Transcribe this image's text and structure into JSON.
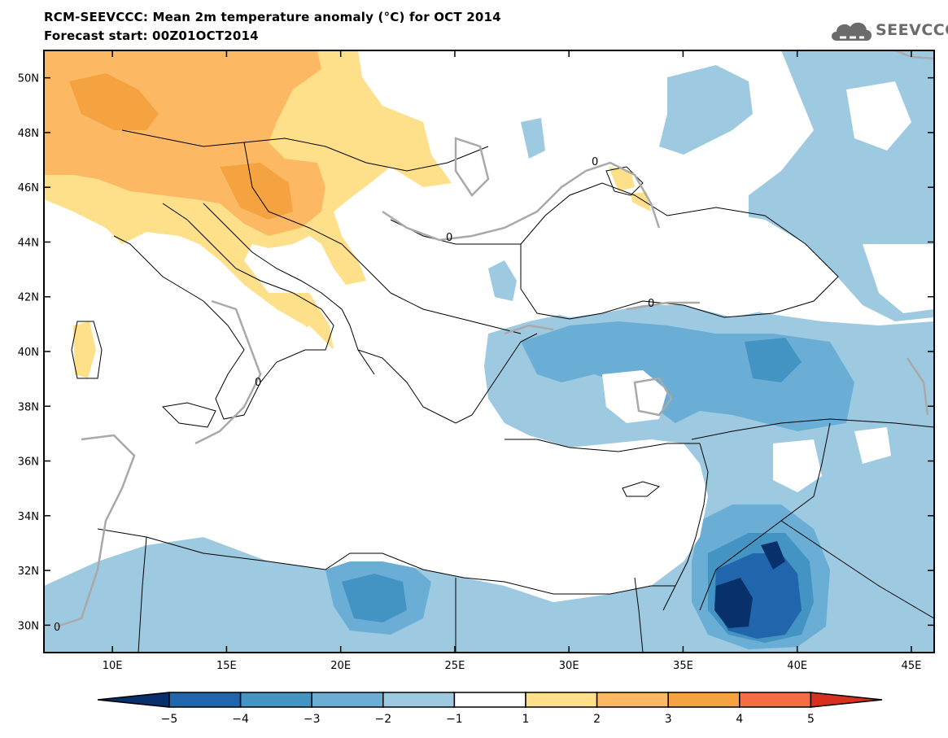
{
  "header": {
    "title_line1": "RCM-SEEVCCC: Mean 2m temperature anomaly (°C) for OCT 2014",
    "title_line2": "Forecast start: 00Z01OCT2014",
    "logo_text": "SEEVCCC",
    "logo_icon": "cloud-icon"
  },
  "map": {
    "lon_range": [
      7,
      46
    ],
    "lat_range": [
      29,
      51
    ],
    "lon_ticks": [
      "10E",
      "15E",
      "20E",
      "25E",
      "30E",
      "35E",
      "40E",
      "45E"
    ],
    "lon_tick_values": [
      10,
      15,
      20,
      25,
      30,
      35,
      40,
      45
    ],
    "lat_ticks": [
      "30N",
      "32N",
      "34N",
      "36N",
      "38N",
      "40N",
      "42N",
      "44N",
      "46N",
      "48N",
      "50N"
    ],
    "lat_tick_values": [
      30,
      32,
      34,
      36,
      38,
      40,
      42,
      44,
      46,
      48,
      50
    ],
    "zero_contour_label": "0"
  },
  "colorbar": {
    "labels": [
      "−5",
      "−4",
      "−3",
      "−2",
      "−1",
      "1",
      "2",
      "3",
      "4",
      "5"
    ],
    "colors": [
      "#08306b",
      "#2166ac",
      "#4393c3",
      "#6aaed6",
      "#9ecae1",
      "#ffffff",
      "#fee08b",
      "#fdb863",
      "#f4a340",
      "#f46d43",
      "#d7301f"
    ]
  }
}
